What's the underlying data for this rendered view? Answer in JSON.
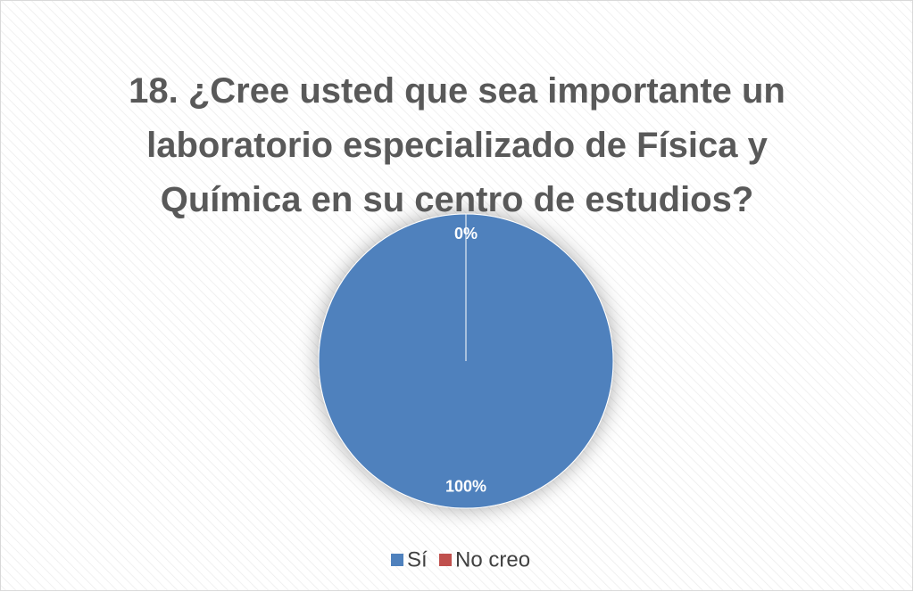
{
  "chart_data": {
    "type": "pie",
    "title": "18. ¿Cree usted que sea importante un laboratorio especializado de Física y Química en su centro de estudios?",
    "categories": [
      "Sí",
      "No creo"
    ],
    "values": [
      100,
      0
    ],
    "value_labels": [
      "100%",
      "0%"
    ],
    "colors": [
      "#4f81bd",
      "#c0504d"
    ],
    "legend": "bottom"
  }
}
